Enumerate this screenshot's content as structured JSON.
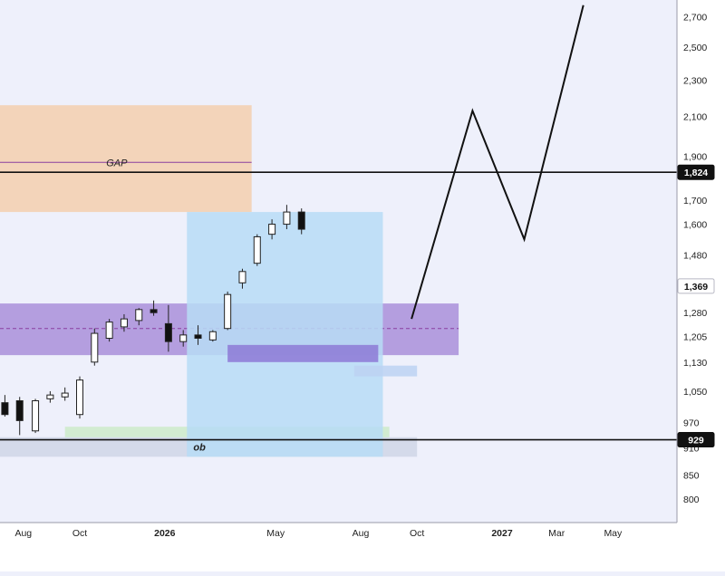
{
  "chart_data": {
    "type": "candlestick",
    "title": "",
    "xlabel": "",
    "ylabel": "",
    "y_scale": "log",
    "grid": false,
    "y_ticks": [
      2700,
      2500,
      2300,
      2100,
      1900,
      1700,
      1600,
      1480,
      1280,
      1205,
      1130,
      1050,
      970,
      910,
      850,
      800
    ],
    "x_ticks": [
      {
        "label": "Aug",
        "date": "2025-08-01",
        "bold": false
      },
      {
        "label": "Oct",
        "date": "2025-10-01",
        "bold": false
      },
      {
        "label": "2026",
        "date": "2026-01-01",
        "bold": true
      },
      {
        "label": "May",
        "date": "2026-05-01",
        "bold": false
      },
      {
        "label": "Aug",
        "date": "2026-08-01",
        "bold": false
      },
      {
        "label": "Oct",
        "date": "2026-10-01",
        "bold": false
      },
      {
        "label": "2027",
        "date": "2027-01-01",
        "bold": true
      },
      {
        "label": "Mar",
        "date": "2027-03-01",
        "bold": false
      },
      {
        "label": "May",
        "date": "2027-05-01",
        "bold": false
      }
    ],
    "price_labels": [
      {
        "label": "1,824",
        "value": 1824,
        "style": "dark"
      },
      {
        "label": "1,369",
        "value": 1369,
        "style": "light"
      },
      {
        "label": "929",
        "value": 929,
        "style": "dark"
      }
    ],
    "levels": [
      {
        "name": "resistance",
        "value": 1824
      },
      {
        "name": "support",
        "value": 929
      }
    ],
    "zones": [
      {
        "label": "GAP",
        "from": "2025-05-15",
        "to": "2026-04-05",
        "low": 1650,
        "high": 2160,
        "color": "#f3cfae",
        "mid": 1870
      },
      {
        "label": "",
        "from": "2025-05-15",
        "to": "2026-11-15",
        "low": 1150,
        "high": 1310,
        "color": "#a98fd9",
        "mid": 1230
      },
      {
        "label": "ob",
        "from": "2025-05-15",
        "to": "2026-10-01",
        "low": 890,
        "high": 935,
        "color": "#cfd6e6",
        "mid": 0
      },
      {
        "label": "",
        "from": "2025-09-15",
        "to": "2026-09-01",
        "low": 935,
        "high": 960,
        "color": "#cdebc9",
        "mid": 0
      },
      {
        "label": "",
        "from": "2026-01-25",
        "to": "2026-08-25",
        "low": 890,
        "high": 1650,
        "color": "#b7dcf6",
        "mid": 0
      },
      {
        "label": "",
        "from": "2026-03-10",
        "to": "2026-08-20",
        "low": 1130,
        "high": 1180,
        "color": "#8d79d6",
        "mid": 0
      },
      {
        "label": "",
        "from": "2026-07-25",
        "to": "2026-10-01",
        "low": 1090,
        "high": 1120,
        "color": "#bcd2f2",
        "mid": 0
      }
    ],
    "candles": [
      {
        "date": "2025-06-10",
        "open": 1070,
        "high": 1085,
        "low": 1010,
        "close": 1015
      },
      {
        "date": "2025-06-26",
        "open": 1060,
        "high": 1070,
        "low": 1015,
        "close": 1020
      },
      {
        "date": "2025-07-12",
        "open": 1020,
        "high": 1040,
        "low": 985,
        "close": 990
      },
      {
        "date": "2025-07-28",
        "open": 1025,
        "high": 1035,
        "low": 940,
        "close": 975
      },
      {
        "date": "2025-08-14",
        "open": 950,
        "high": 1030,
        "low": 945,
        "close": 1025
      },
      {
        "date": "2025-08-30",
        "open": 1030,
        "high": 1050,
        "low": 1020,
        "close": 1040
      },
      {
        "date": "2025-09-15",
        "open": 1035,
        "high": 1060,
        "low": 1025,
        "close": 1045
      },
      {
        "date": "2025-10-01",
        "open": 990,
        "high": 1090,
        "low": 980,
        "close": 1080
      },
      {
        "date": "2025-10-17",
        "open": 1130,
        "high": 1230,
        "low": 1120,
        "close": 1215
      },
      {
        "date": "2025-11-02",
        "open": 1200,
        "high": 1260,
        "low": 1190,
        "close": 1250
      },
      {
        "date": "2025-11-18",
        "open": 1235,
        "high": 1275,
        "low": 1220,
        "close": 1260
      },
      {
        "date": "2025-12-04",
        "open": 1255,
        "high": 1295,
        "low": 1240,
        "close": 1290
      },
      {
        "date": "2025-12-20",
        "open": 1290,
        "high": 1320,
        "low": 1270,
        "close": 1280
      },
      {
        "date": "2026-01-05",
        "open": 1245,
        "high": 1305,
        "low": 1160,
        "close": 1190
      },
      {
        "date": "2026-01-21",
        "open": 1190,
        "high": 1225,
        "low": 1175,
        "close": 1210
      },
      {
        "date": "2026-02-06",
        "open": 1210,
        "high": 1240,
        "low": 1180,
        "close": 1200
      },
      {
        "date": "2026-02-22",
        "open": 1195,
        "high": 1225,
        "low": 1190,
        "close": 1220
      },
      {
        "date": "2026-03-10",
        "open": 1230,
        "high": 1350,
        "low": 1225,
        "close": 1340
      },
      {
        "date": "2026-03-26",
        "open": 1380,
        "high": 1430,
        "low": 1360,
        "close": 1420
      },
      {
        "date": "2026-04-11",
        "open": 1450,
        "high": 1560,
        "low": 1440,
        "close": 1550
      },
      {
        "date": "2026-04-27",
        "open": 1560,
        "high": 1620,
        "low": 1540,
        "close": 1600
      },
      {
        "date": "2026-05-13",
        "open": 1600,
        "high": 1680,
        "low": 1580,
        "close": 1650
      },
      {
        "date": "2026-05-29",
        "open": 1650,
        "high": 1665,
        "low": 1560,
        "close": 1580
      }
    ],
    "forecast": [
      {
        "date": "2026-09-25",
        "value": 1260
      },
      {
        "date": "2026-11-30",
        "value": 2130
      },
      {
        "date": "2027-01-25",
        "value": 1540
      },
      {
        "date": "2027-03-30",
        "value": 2780
      }
    ],
    "annotations": [
      "GAP",
      "ob"
    ]
  }
}
